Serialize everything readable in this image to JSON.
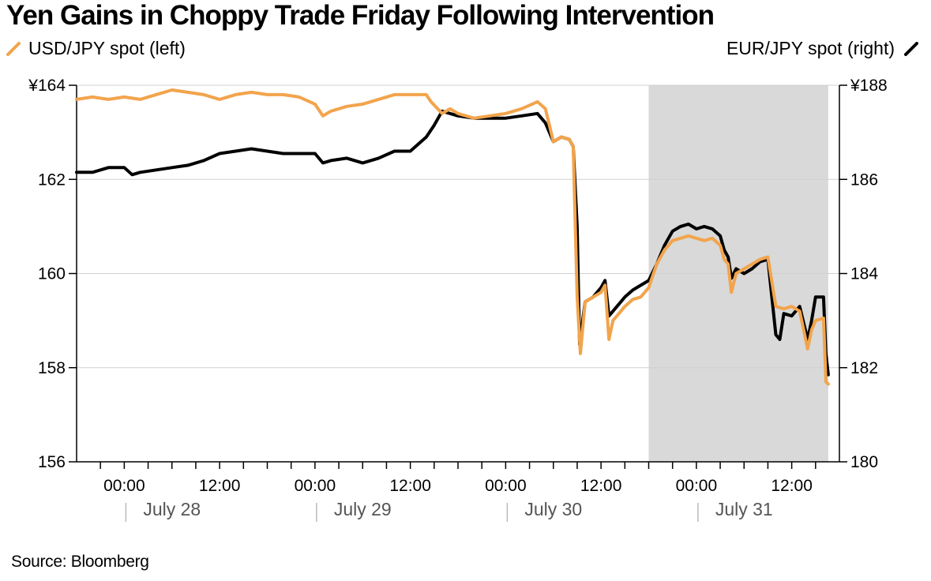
{
  "chart_data": {
    "type": "line",
    "title": "Yen Gains in Choppy Trade Friday Following Intervention",
    "source": "Source: Bloomberg",
    "x_unit": "hour (hours from July 28 00:00)",
    "x_range": [
      -6,
      90
    ],
    "highlight_range": [
      66,
      88.6
    ],
    "y_left": {
      "min": 156,
      "max": 164,
      "ticks": [
        156,
        158,
        160,
        162,
        164
      ],
      "tick_labels": [
        "156",
        "158",
        "160",
        "162",
        "¥164"
      ]
    },
    "y_right": {
      "min": 180,
      "max": 188,
      "ticks": [
        180,
        182,
        184,
        186,
        188
      ],
      "tick_labels": [
        "180",
        "182",
        "184",
        "186",
        "¥188"
      ]
    },
    "x_ticks": [
      {
        "hour": 0,
        "label": "00:00"
      },
      {
        "hour": 12,
        "label": "12:00"
      },
      {
        "hour": 24,
        "label": "00:00"
      },
      {
        "hour": 36,
        "label": "12:00"
      },
      {
        "hour": 48,
        "label": "00:00"
      },
      {
        "hour": 60,
        "label": "12:00"
      },
      {
        "hour": 72,
        "label": "00:00"
      },
      {
        "hour": 84,
        "label": "12:00"
      }
    ],
    "date_labels": [
      {
        "hour": 6,
        "label": "July 28"
      },
      {
        "hour": 30,
        "label": "July 29"
      },
      {
        "hour": 54,
        "label": "July 30"
      },
      {
        "hour": 78,
        "label": "July 31"
      }
    ],
    "grid": true,
    "series": [
      {
        "name": "USD/JPY spot (left)",
        "axis": "left",
        "color": "#f2a44c",
        "points": [
          [
            -6,
            163.7
          ],
          [
            -4,
            163.75
          ],
          [
            -2,
            163.7
          ],
          [
            0,
            163.75
          ],
          [
            2,
            163.7
          ],
          [
            4,
            163.8
          ],
          [
            6,
            163.9
          ],
          [
            8,
            163.85
          ],
          [
            10,
            163.8
          ],
          [
            12,
            163.7
          ],
          [
            14,
            163.8
          ],
          [
            16,
            163.85
          ],
          [
            18,
            163.8
          ],
          [
            20,
            163.8
          ],
          [
            22,
            163.75
          ],
          [
            24,
            163.6
          ],
          [
            25,
            163.35
          ],
          [
            26,
            163.45
          ],
          [
            28,
            163.55
          ],
          [
            30,
            163.6
          ],
          [
            32,
            163.7
          ],
          [
            34,
            163.8
          ],
          [
            36,
            163.8
          ],
          [
            38,
            163.8
          ],
          [
            38.6,
            163.65
          ],
          [
            40,
            163.4
          ],
          [
            41,
            163.5
          ],
          [
            42,
            163.4
          ],
          [
            44,
            163.3
          ],
          [
            46,
            163.35
          ],
          [
            48,
            163.4
          ],
          [
            50,
            163.5
          ],
          [
            52,
            163.65
          ],
          [
            53,
            163.5
          ],
          [
            54,
            162.8
          ],
          [
            55,
            162.9
          ],
          [
            56,
            162.85
          ],
          [
            56.5,
            162.7
          ],
          [
            57,
            159.5
          ],
          [
            57.4,
            158.3
          ],
          [
            58,
            159.4
          ],
          [
            59,
            159.5
          ],
          [
            60,
            159.6
          ],
          [
            60.5,
            159.75
          ],
          [
            61,
            158.6
          ],
          [
            61.5,
            159.0
          ],
          [
            62,
            159.1
          ],
          [
            63,
            159.3
          ],
          [
            64,
            159.45
          ],
          [
            65,
            159.5
          ],
          [
            66,
            159.7
          ],
          [
            67,
            160.2
          ],
          [
            68,
            160.5
          ],
          [
            69,
            160.7
          ],
          [
            70,
            160.75
          ],
          [
            71,
            160.8
          ],
          [
            72,
            160.75
          ],
          [
            73,
            160.7
          ],
          [
            74,
            160.75
          ],
          [
            75,
            160.6
          ],
          [
            75.5,
            160.3
          ],
          [
            76,
            160.2
          ],
          [
            76.4,
            159.6
          ],
          [
            77,
            160.0
          ],
          [
            78,
            160.1
          ],
          [
            79,
            160.2
          ],
          [
            80,
            160.3
          ],
          [
            81,
            160.35
          ],
          [
            82,
            159.3
          ],
          [
            83,
            159.25
          ],
          [
            84,
            159.3
          ],
          [
            85,
            159.2
          ],
          [
            86,
            158.4
          ],
          [
            86.5,
            158.8
          ],
          [
            87,
            159.0
          ],
          [
            88,
            159.05
          ],
          [
            88.3,
            157.7
          ],
          [
            88.6,
            157.65
          ]
        ]
      },
      {
        "name": "EUR/JPY spot (right)",
        "axis": "right",
        "color": "#000000",
        "points": [
          [
            -6,
            186.15
          ],
          [
            -4,
            186.15
          ],
          [
            -2,
            186.25
          ],
          [
            0,
            186.25
          ],
          [
            1,
            186.1
          ],
          [
            2,
            186.15
          ],
          [
            4,
            186.2
          ],
          [
            6,
            186.25
          ],
          [
            8,
            186.3
          ],
          [
            10,
            186.4
          ],
          [
            12,
            186.55
          ],
          [
            14,
            186.6
          ],
          [
            16,
            186.65
          ],
          [
            18,
            186.6
          ],
          [
            20,
            186.55
          ],
          [
            22,
            186.55
          ],
          [
            24,
            186.55
          ],
          [
            25,
            186.35
          ],
          [
            26,
            186.4
          ],
          [
            28,
            186.45
          ],
          [
            30,
            186.35
          ],
          [
            32,
            186.45
          ],
          [
            34,
            186.6
          ],
          [
            36,
            186.6
          ],
          [
            38,
            186.9
          ],
          [
            39,
            187.15
          ],
          [
            40,
            187.45
          ],
          [
            42,
            187.35
          ],
          [
            44,
            187.3
          ],
          [
            46,
            187.3
          ],
          [
            48,
            187.3
          ],
          [
            50,
            187.35
          ],
          [
            52,
            187.4
          ],
          [
            53,
            187.2
          ],
          [
            54,
            186.8
          ],
          [
            55,
            186.9
          ],
          [
            56,
            186.85
          ],
          [
            56.5,
            186.7
          ],
          [
            57,
            185.0
          ],
          [
            57.3,
            182.5
          ],
          [
            58,
            183.4
          ],
          [
            59,
            183.5
          ],
          [
            60,
            183.7
          ],
          [
            60.5,
            183.85
          ],
          [
            61,
            183.1
          ],
          [
            62,
            183.3
          ],
          [
            63,
            183.5
          ],
          [
            64,
            183.65
          ],
          [
            65,
            183.75
          ],
          [
            66,
            183.85
          ],
          [
            67,
            184.2
          ],
          [
            68,
            184.6
          ],
          [
            69,
            184.9
          ],
          [
            70,
            185.0
          ],
          [
            71,
            185.05
          ],
          [
            72,
            184.95
          ],
          [
            73,
            185.0
          ],
          [
            74,
            184.95
          ],
          [
            75,
            184.8
          ],
          [
            75.5,
            184.5
          ],
          [
            76,
            184.35
          ],
          [
            76.4,
            183.9
          ],
          [
            77,
            184.1
          ],
          [
            78,
            184.0
          ],
          [
            79,
            184.1
          ],
          [
            80,
            184.25
          ],
          [
            81,
            184.3
          ],
          [
            82,
            182.7
          ],
          [
            82.5,
            182.6
          ],
          [
            83,
            183.15
          ],
          [
            84,
            183.1
          ],
          [
            85,
            183.3
          ],
          [
            86,
            182.6
          ],
          [
            86.5,
            183.0
          ],
          [
            87,
            183.5
          ],
          [
            88,
            183.5
          ],
          [
            88.3,
            182.3
          ],
          [
            88.6,
            181.85
          ]
        ]
      }
    ]
  }
}
